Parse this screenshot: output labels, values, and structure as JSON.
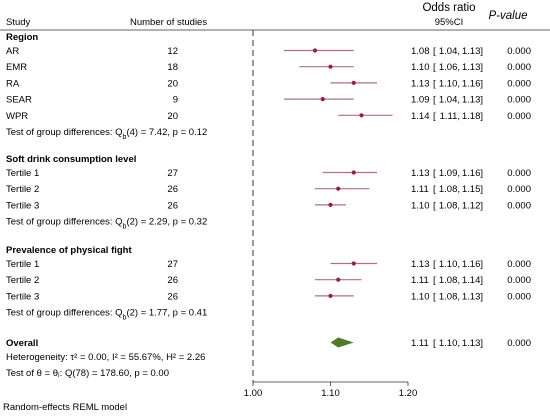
{
  "chart_data": {
    "type": "forest",
    "header": {
      "study": "Study",
      "n": "Number of studies",
      "or": "Odds ratio",
      "ci": "95%CI",
      "p": "P-value"
    },
    "xaxis": {
      "ticks": [
        "1.00",
        "1.10",
        "1.20"
      ],
      "tick_values": [
        1.0,
        1.1,
        1.2
      ],
      "range": [
        1.0,
        1.2
      ],
      "reference_line": 1.0
    },
    "groups": [
      {
        "title": "Region",
        "rows": [
          {
            "label": "AR",
            "n": "12",
            "or": 1.08,
            "lo": 1.04,
            "hi": 1.13,
            "or_text": "1.08",
            "lo_text": "1.04",
            "hi_text": "1.13",
            "p": "0.000"
          },
          {
            "label": "EMR",
            "n": "18",
            "or": 1.1,
            "lo": 1.06,
            "hi": 1.13,
            "or_text": "1.10",
            "lo_text": "1.06",
            "hi_text": "1.13",
            "p": "0.000"
          },
          {
            "label": "RA",
            "n": "20",
            "or": 1.13,
            "lo": 1.1,
            "hi": 1.16,
            "or_text": "1.13",
            "lo_text": "1.10",
            "hi_text": "1.16",
            "p": "0.000"
          },
          {
            "label": "SEAR",
            "n": "9",
            "or": 1.09,
            "lo": 1.04,
            "hi": 1.13,
            "or_text": "1.09",
            "lo_text": "1.04",
            "hi_text": "1.13",
            "p": "0.000"
          },
          {
            "label": "WPR",
            "n": "20",
            "or": 1.14,
            "lo": 1.11,
            "hi": 1.18,
            "or_text": "1.14",
            "lo_text": "1.11",
            "hi_text": "1.18",
            "p": "0.000"
          }
        ],
        "test": {
          "prefix": "Test of group differences: Q",
          "sub": "b",
          "suffix": "(4) = 7.42, p = 0.12"
        }
      },
      {
        "title": "Soft drink consumption level",
        "rows": [
          {
            "label": "Tertile 1",
            "n": "27",
            "or": 1.13,
            "lo": 1.09,
            "hi": 1.16,
            "or_text": "1.13",
            "lo_text": "1.09",
            "hi_text": "1.16",
            "p": "0.000"
          },
          {
            "label": "Tertile 2",
            "n": "26",
            "or": 1.11,
            "lo": 1.08,
            "hi": 1.15,
            "or_text": "1.11",
            "lo_text": "1.08",
            "hi_text": "1.15",
            "p": "0.000"
          },
          {
            "label": "Tertile 3",
            "n": "26",
            "or": 1.1,
            "lo": 1.08,
            "hi": 1.12,
            "or_text": "1.10",
            "lo_text": "1.08",
            "hi_text": "1.12",
            "p": "0.000"
          }
        ],
        "test": {
          "prefix": "Test of group differences: Q",
          "sub": "b",
          "suffix": "(2) = 2.29, p = 0.32"
        }
      },
      {
        "title": "Prevalence of physical fight",
        "rows": [
          {
            "label": "Tertile 1",
            "n": "27",
            "or": 1.13,
            "lo": 1.1,
            "hi": 1.16,
            "or_text": "1.13",
            "lo_text": "1.10",
            "hi_text": "1.16",
            "p": "0.000"
          },
          {
            "label": "Tertile 2",
            "n": "26",
            "or": 1.11,
            "lo": 1.08,
            "hi": 1.14,
            "or_text": "1.11",
            "lo_text": "1.08",
            "hi_text": "1.14",
            "p": "0.000"
          },
          {
            "label": "Tertile 3",
            "n": "26",
            "or": 1.1,
            "lo": 1.08,
            "hi": 1.13,
            "or_text": "1.10",
            "lo_text": "1.08",
            "hi_text": "1.13",
            "p": "0.000"
          }
        ],
        "test": {
          "prefix": "Test of group differences: Q",
          "sub": "b",
          "suffix": "(2) = 1.77, p = 0.41"
        }
      }
    ],
    "overall": {
      "label": "Overall",
      "or": 1.11,
      "lo": 1.1,
      "hi": 1.13,
      "or_text": "1.11",
      "lo_text": "1.10",
      "hi_text": "1.13",
      "p": "0.000",
      "heterogeneity": "Heterogeneity: τ² = 0.00, I² = 55.67%, H² = 2.26",
      "test_theta": "Test of θ = θⱼ: Q(78) = 178.60, p = 0.00"
    },
    "footnote": "Random-effects REML model",
    "colors": {
      "ci_line": "#b07080",
      "point": "#9b1f3a",
      "diamond": "#4f7a2a",
      "ref_line": "#333333"
    }
  }
}
